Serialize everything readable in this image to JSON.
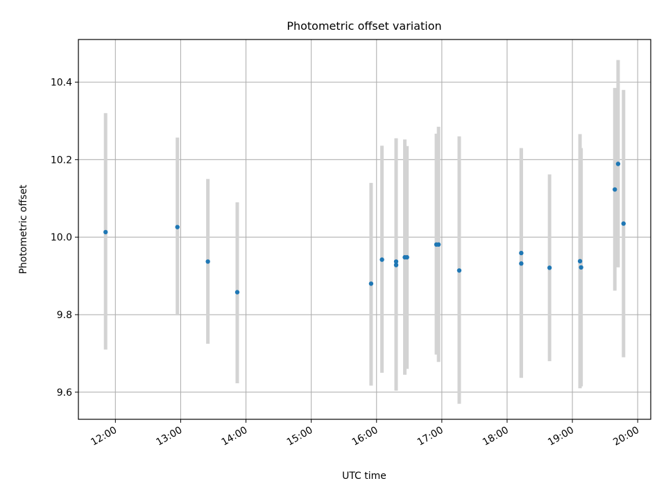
{
  "chart_data": {
    "type": "scatter",
    "title": "Photometric offset variation",
    "xlabel": "UTC time",
    "ylabel": "Photometric offset",
    "x_scale": "time",
    "x_tick_labels": [
      "12:00",
      "13:00",
      "14:00",
      "15:00",
      "16:00",
      "17:00",
      "18:00",
      "19:00",
      "20:00"
    ],
    "x_ticks": [
      "12:00",
      "13:00",
      "14:00",
      "15:00",
      "16:00",
      "17:00",
      "18:00",
      "19:00",
      "20:00"
    ],
    "xlim": [
      "11:26",
      "20:12"
    ],
    "y_tick_labels": [
      "9.6",
      "9.8",
      "10.0",
      "10.2",
      "10.4"
    ],
    "y_ticks": [
      9.6,
      9.8,
      10.0,
      10.2,
      10.4
    ],
    "ylim": [
      9.53,
      10.51
    ],
    "grid": true,
    "points": [
      {
        "x": "11:51",
        "y": 10.013,
        "ylow": 9.71,
        "yhigh": 10.32
      },
      {
        "x": "12:57",
        "y": 10.026,
        "ylow": 9.8,
        "yhigh": 10.257
      },
      {
        "x": "13:25",
        "y": 9.937,
        "ylow": 9.725,
        "yhigh": 10.15
      },
      {
        "x": "13:52",
        "y": 9.858,
        "ylow": 9.623,
        "yhigh": 10.09
      },
      {
        "x": "15:55",
        "y": 9.88,
        "ylow": 9.617,
        "yhigh": 10.14
      },
      {
        "x": "16:05",
        "y": 9.942,
        "ylow": 9.65,
        "yhigh": 10.236
      },
      {
        "x": "16:18",
        "y": 9.928,
        "ylow": 9.604,
        "yhigh": 10.255
      },
      {
        "x": "16:18",
        "y": 9.937,
        "ylow": 9.604,
        "yhigh": 10.255
      },
      {
        "x": "16:26",
        "y": 9.948,
        "ylow": 9.645,
        "yhigh": 10.252
      },
      {
        "x": "16:28",
        "y": 9.948,
        "ylow": 9.66,
        "yhigh": 10.235
      },
      {
        "x": "16:55",
        "y": 9.981,
        "ylow": 9.697,
        "yhigh": 10.267
      },
      {
        "x": "16:57",
        "y": 9.981,
        "ylow": 9.678,
        "yhigh": 10.285
      },
      {
        "x": "17:16",
        "y": 9.914,
        "ylow": 9.57,
        "yhigh": 10.26
      },
      {
        "x": "18:13",
        "y": 9.932,
        "ylow": 9.637,
        "yhigh": 10.226
      },
      {
        "x": "18:13",
        "y": 9.959,
        "ylow": 9.637,
        "yhigh": 10.23
      },
      {
        "x": "18:39",
        "y": 9.921,
        "ylow": 9.68,
        "yhigh": 10.162
      },
      {
        "x": "19:07",
        "y": 9.938,
        "ylow": 9.61,
        "yhigh": 10.266
      },
      {
        "x": "19:08",
        "y": 9.922,
        "ylow": 9.615,
        "yhigh": 10.23
      },
      {
        "x": "19:39",
        "y": 10.123,
        "ylow": 9.862,
        "yhigh": 10.385
      },
      {
        "x": "19:42",
        "y": 10.189,
        "ylow": 9.922,
        "yhigh": 10.457
      },
      {
        "x": "19:47",
        "y": 10.035,
        "ylow": 9.69,
        "yhigh": 10.38
      }
    ],
    "colors": {
      "point": "#1f77b4",
      "errorbar": "#d3d3d3",
      "grid": "#b0b0b0"
    }
  }
}
